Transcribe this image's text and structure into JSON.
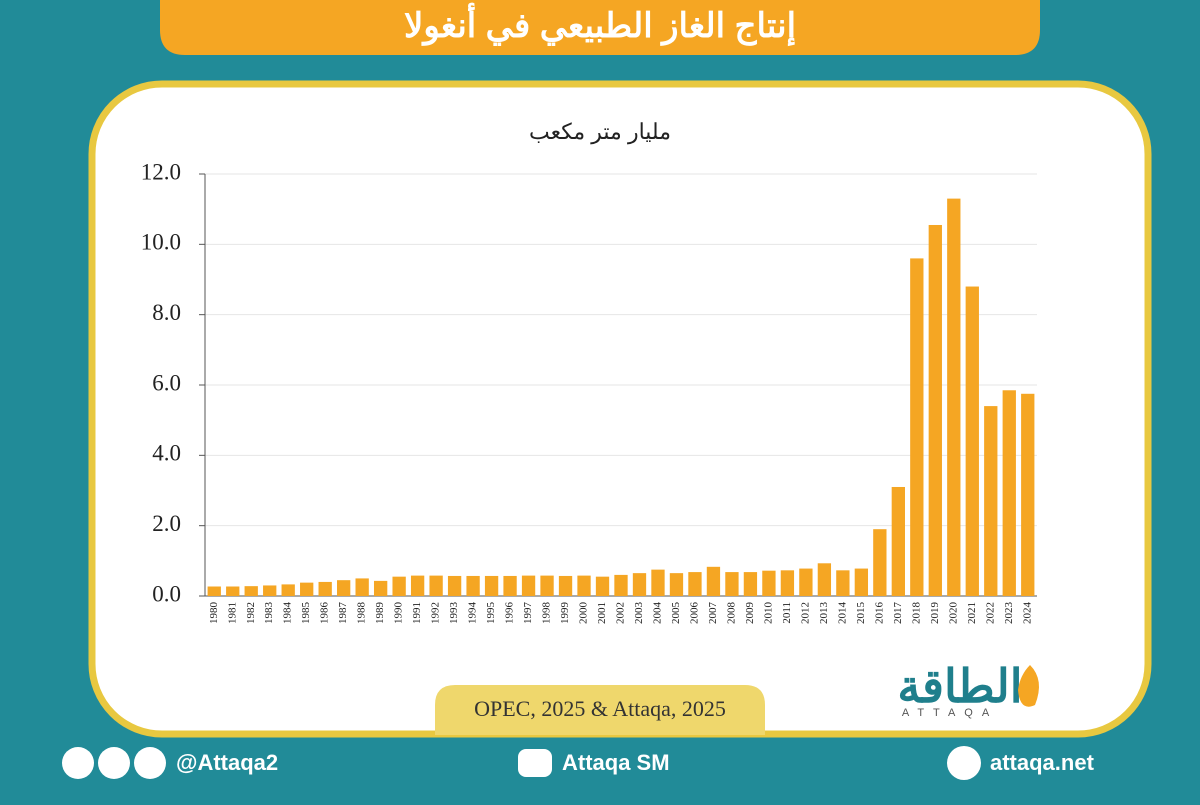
{
  "chart_data": {
    "type": "bar",
    "title": "إنتاج الغاز الطبيعي في أنغولا",
    "unit_label": "مليار متر مكعب",
    "source": "OPEC, 2025 & Attaqa, 2025",
    "categories": [
      "1980",
      "1981",
      "1982",
      "1983",
      "1984",
      "1985",
      "1986",
      "1987",
      "1988",
      "1989",
      "1990",
      "1991",
      "1992",
      "1993",
      "1994",
      "1995",
      "1996",
      "1997",
      "1998",
      "1999",
      "2000",
      "2001",
      "2002",
      "2003",
      "2004",
      "2005",
      "2006",
      "2007",
      "2008",
      "2009",
      "2010",
      "2011",
      "2012",
      "2013",
      "2014",
      "2015",
      "2016",
      "2017",
      "2018",
      "2019",
      "2020",
      "2021",
      "2022",
      "2023",
      "2024"
    ],
    "values": [
      0.27,
      0.27,
      0.28,
      0.3,
      0.33,
      0.38,
      0.4,
      0.45,
      0.5,
      0.43,
      0.55,
      0.58,
      0.58,
      0.57,
      0.57,
      0.57,
      0.57,
      0.58,
      0.58,
      0.57,
      0.58,
      0.55,
      0.6,
      0.65,
      0.75,
      0.65,
      0.68,
      0.83,
      0.68,
      0.68,
      0.72,
      0.73,
      0.78,
      0.93,
      0.73,
      0.78,
      1.9,
      3.1,
      9.6,
      10.55,
      11.3,
      8.8,
      5.4,
      5.85,
      5.75
    ],
    "color": "#f5a623",
    "ylim": [
      0,
      12
    ],
    "yticks": [
      {
        "value": 0,
        "label": "0.0"
      },
      {
        "value": 2,
        "label": "2.0"
      },
      {
        "value": 4,
        "label": "4.0"
      },
      {
        "value": 6,
        "label": "6.0"
      },
      {
        "value": 8,
        "label": "8.0"
      },
      {
        "value": 10,
        "label": "10.0"
      },
      {
        "value": 12,
        "label": "12.0"
      }
    ],
    "grid": true
  },
  "logo": {
    "arabic": "الطاقة",
    "latin": "ATTAQA"
  },
  "footer": {
    "social": "@Attaqa2",
    "youtube": "Attaqa SM",
    "website": "attaqa.net"
  }
}
